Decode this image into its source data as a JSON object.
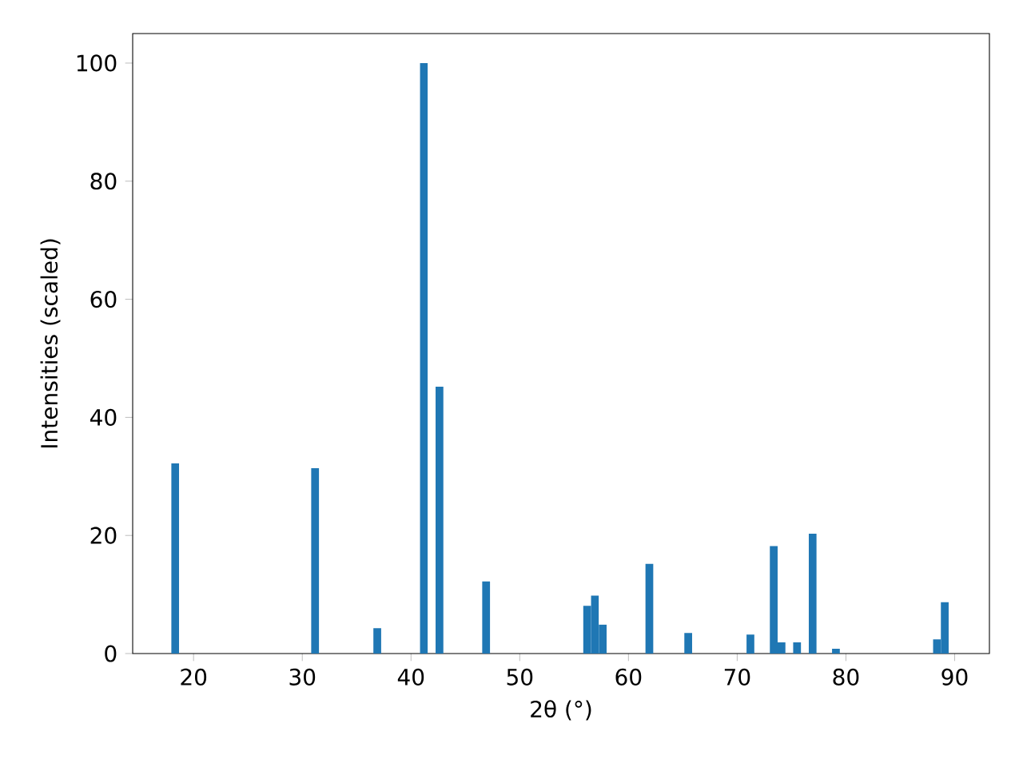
{
  "chart_data": {
    "type": "histogram",
    "xlabel": "2θ (°)",
    "ylabel": "Intensities (scaled)",
    "color": "#1f77b4",
    "bins": [
      17.95,
      18.665,
      19.38,
      20.095,
      20.81,
      21.525,
      22.24,
      22.955,
      23.67,
      24.385,
      25.1,
      25.815,
      26.53,
      27.245,
      27.96,
      28.675,
      29.39,
      30.105,
      30.82,
      31.535,
      32.25,
      32.965,
      33.68,
      34.395,
      35.11,
      35.825,
      36.54,
      37.255,
      37.97,
      38.685,
      39.4,
      40.115,
      40.83,
      41.545,
      42.26,
      42.975,
      43.69,
      44.405,
      45.12,
      45.835,
      46.55,
      47.265,
      47.98,
      48.695,
      49.41,
      50.125,
      50.84,
      51.555,
      52.27,
      52.985,
      53.7,
      54.415,
      55.13,
      55.845,
      56.56,
      57.275,
      57.99,
      58.705,
      59.42,
      60.135,
      60.85,
      61.565,
      62.28,
      62.995,
      63.71,
      64.425,
      65.14,
      65.855,
      66.57,
      67.285,
      68.0,
      68.715,
      69.43,
      70.145,
      70.86,
      71.575,
      72.29,
      73.005,
      73.72,
      74.435,
      75.15,
      75.865,
      76.58,
      77.295,
      78.01,
      78.725,
      79.44,
      80.155,
      80.87,
      81.585,
      82.3,
      83.015,
      83.73,
      84.445,
      85.16,
      85.875,
      86.59,
      87.305,
      88.02,
      88.735,
      89.45
    ],
    "values": [
      32.2,
      0,
      0,
      0,
      0,
      0,
      0,
      0,
      0,
      0,
      0,
      0,
      0,
      0,
      0,
      0,
      0,
      0,
      31.4,
      0,
      0,
      0,
      0,
      0,
      0,
      0,
      4.3,
      0,
      0,
      0,
      0,
      0,
      100,
      0,
      45.2,
      0,
      0,
      0,
      0,
      0,
      12.2,
      0,
      0,
      0,
      0,
      0,
      0,
      0,
      0,
      0,
      0,
      0,
      0,
      8.1,
      9.8,
      4.9,
      0,
      0,
      0,
      0,
      0,
      15.2,
      0,
      0,
      0,
      0,
      3.5,
      0,
      0,
      0,
      0,
      0,
      0,
      0,
      3.2,
      0,
      0,
      18.2,
      1.9,
      0,
      1.9,
      0,
      20.3,
      0,
      0,
      0.8,
      0,
      0,
      0,
      0,
      0,
      0,
      0,
      0,
      0,
      0,
      0,
      0,
      2.4,
      8.7
    ],
    "xlim": [
      14.4,
      93.2
    ],
    "ylim": [
      0,
      105
    ],
    "xticks": [
      20,
      30,
      40,
      50,
      60,
      70,
      80,
      90
    ],
    "yticks": [
      0,
      20,
      40,
      60,
      80,
      100
    ]
  }
}
